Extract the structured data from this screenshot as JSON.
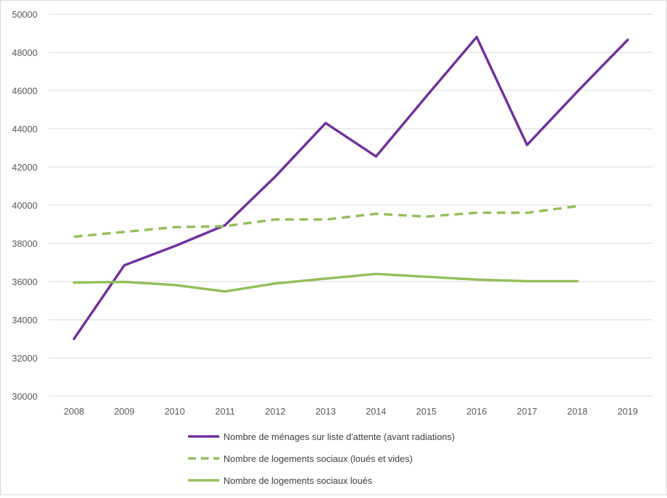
{
  "chart_data": {
    "type": "line",
    "title": "",
    "xlabel": "",
    "ylabel": "",
    "x": [
      "2008",
      "2009",
      "2010",
      "2011",
      "2012",
      "2013",
      "2014",
      "2015",
      "2016",
      "2017",
      "2018",
      "2019"
    ],
    "ylim": [
      30000,
      50000
    ],
    "yticks": [
      30000,
      32000,
      34000,
      36000,
      38000,
      40000,
      42000,
      44000,
      46000,
      48000,
      50000
    ],
    "ytick_labels": [
      "30000",
      "32000",
      "34000",
      "36000",
      "38000",
      "40000",
      "42000",
      "44000",
      "46000",
      "48000",
      "50000"
    ],
    "grid": true,
    "legend_position": "bottom",
    "series": [
      {
        "name": "Nombre de ménages sur liste d'attente (avant radiations)",
        "color": "#7030a0",
        "style": "solid",
        "values": [
          33000,
          36850,
          37850,
          38950,
          41500,
          44300,
          42550,
          45700,
          48800,
          43150,
          45950,
          48650
        ]
      },
      {
        "name": "Nombre de logements sociaux (loués et vides)",
        "color": "#92c05a",
        "style": "dashed",
        "values": [
          38350,
          38600,
          38850,
          38900,
          39250,
          39250,
          39550,
          39400,
          39600,
          39600,
          39950,
          null
        ]
      },
      {
        "name": "Nombre de logements sociaux loués",
        "color": "#92c05a",
        "style": "solid",
        "values": [
          35950,
          35980,
          35820,
          35480,
          35900,
          36150,
          36400,
          36250,
          36100,
          36020,
          36020,
          null
        ]
      }
    ]
  }
}
